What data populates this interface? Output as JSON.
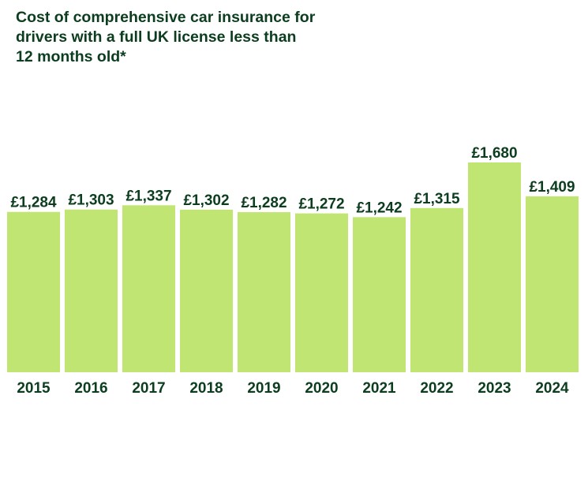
{
  "chart_data": {
    "type": "bar",
    "title": "Cost of comprehensive car insurance for drivers with a full UK license less than 12 months old*",
    "xlabel": "",
    "ylabel": "",
    "categories": [
      "2015",
      "2016",
      "2017",
      "2018",
      "2019",
      "2020",
      "2021",
      "2022",
      "2023",
      "2024"
    ],
    "values": [
      1284,
      1303,
      1337,
      1302,
      1282,
      1272,
      1242,
      1315,
      1680,
      1409
    ],
    "value_labels": [
      "£1,284",
      "£1,303",
      "£1,337",
      "£1,302",
      "£1,282",
      "£1,272",
      "£1,242",
      "£1,315",
      "£1,680",
      "£1,409"
    ],
    "ylim": [
      0,
      1680
    ],
    "grid": false,
    "legend": "none"
  },
  "colors": {
    "bar": "#c1e572",
    "text": "#0b3d1e",
    "background": "#ffffff"
  }
}
